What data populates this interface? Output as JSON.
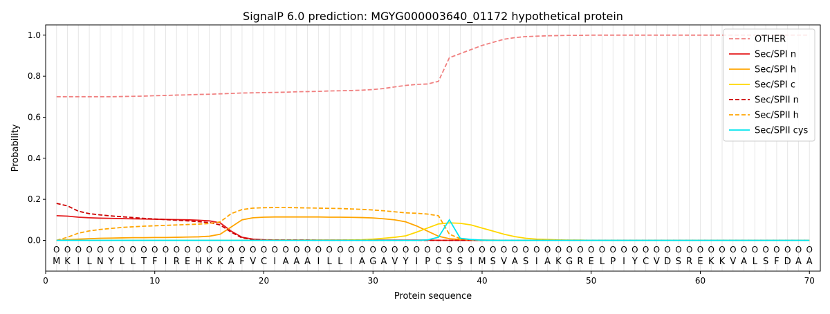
{
  "chart_data": {
    "type": "line",
    "title": "SignalP 6.0 prediction: MGYG000003640_01172 hypothetical protein",
    "xlabel": "Protein sequence",
    "ylabel": "Probability",
    "xlim": [
      0,
      71
    ],
    "ylim": [
      -0.15,
      1.05
    ],
    "x_ticks": [
      0,
      10,
      20,
      30,
      40,
      50,
      60,
      70
    ],
    "y_ticks": [
      0.0,
      0.2,
      0.4,
      0.6,
      0.8,
      1.0
    ],
    "y_tick_labels": [
      "0.0",
      "0.2",
      "0.4",
      "0.6",
      "0.8",
      "1.0"
    ],
    "grid": "vertical lines at each residue",
    "legend_position": "top-right",
    "sequence": [
      "M",
      "K",
      "I",
      "L",
      "N",
      "Y",
      "L",
      "L",
      "T",
      "F",
      "I",
      "R",
      "E",
      "H",
      "K",
      "K",
      "A",
      "F",
      "V",
      "C",
      "I",
      "A",
      "A",
      "A",
      "I",
      "L",
      "L",
      "I",
      "A",
      "G",
      "A",
      "V",
      "Y",
      "I",
      "P",
      "C",
      "S",
      "S",
      "I",
      "M",
      "S",
      "V",
      "A",
      "S",
      "I",
      "A",
      "K",
      "G",
      "R",
      "E",
      "L",
      "P",
      "I",
      "Y",
      "C",
      "V",
      "D",
      "S",
      "R",
      "E",
      "K",
      "K",
      "V",
      "A",
      "L",
      "S",
      "F",
      "D",
      "A",
      "A"
    ],
    "residue_marker": "O",
    "series": [
      {
        "name": "OTHER",
        "color": "#f08080",
        "dash": "dashed",
        "values": [
          0.7,
          0.7,
          0.7,
          0.7,
          0.7,
          0.7,
          0.701,
          0.702,
          0.703,
          0.705,
          0.706,
          0.708,
          0.709,
          0.711,
          0.712,
          0.714,
          0.716,
          0.718,
          0.719,
          0.72,
          0.721,
          0.722,
          0.724,
          0.725,
          0.726,
          0.728,
          0.729,
          0.73,
          0.732,
          0.735,
          0.74,
          0.748,
          0.755,
          0.76,
          0.762,
          0.775,
          0.89,
          0.91,
          0.93,
          0.95,
          0.965,
          0.98,
          0.988,
          0.993,
          0.995,
          0.997,
          0.998,
          0.999,
          0.999,
          1.0,
          1.0,
          1.0,
          1.0,
          1.0,
          1.0,
          1.0,
          1.0,
          1.0,
          1.0,
          1.0,
          1.0,
          1.0,
          1.0,
          1.0,
          1.0,
          1.0,
          1.0,
          1.0,
          1.0,
          1.0
        ]
      },
      {
        "name": "Sec/SPI n",
        "color": "#e41a1c",
        "dash": "solid",
        "values": [
          0.12,
          0.118,
          0.113,
          0.11,
          0.108,
          0.107,
          0.106,
          0.105,
          0.104,
          0.103,
          0.102,
          0.101,
          0.1,
          0.098,
          0.095,
          0.085,
          0.045,
          0.015,
          0.006,
          0.003,
          0.002,
          0.001,
          0.001,
          0.001,
          0.001,
          0.001,
          0.001,
          0.001,
          0.001,
          0.001,
          0.001,
          0.001,
          0.001,
          0.001,
          0.001,
          0.0,
          0.0,
          0.0,
          0.0,
          0.0,
          0.0,
          0.0,
          0.0,
          0.0,
          0.0,
          0.0,
          0.0,
          0.0,
          0.0,
          0.0,
          0.0,
          0.0,
          0.0,
          0.0,
          0.0,
          0.0,
          0.0,
          0.0,
          0.0,
          0.0,
          0.0,
          0.0,
          0.0,
          0.0,
          0.0,
          0.0,
          0.0,
          0.0,
          0.0,
          0.0
        ]
      },
      {
        "name": "Sec/SPI h",
        "color": "#ffa500",
        "dash": "solid",
        "values": [
          0.0,
          0.003,
          0.006,
          0.008,
          0.01,
          0.011,
          0.012,
          0.013,
          0.013,
          0.014,
          0.014,
          0.015,
          0.016,
          0.017,
          0.02,
          0.03,
          0.065,
          0.1,
          0.11,
          0.113,
          0.114,
          0.114,
          0.114,
          0.114,
          0.114,
          0.113,
          0.113,
          0.112,
          0.111,
          0.109,
          0.105,
          0.1,
          0.09,
          0.07,
          0.045,
          0.02,
          0.008,
          0.004,
          0.002,
          0.001,
          0.001,
          0.0,
          0.0,
          0.0,
          0.0,
          0.0,
          0.0,
          0.0,
          0.0,
          0.0,
          0.0,
          0.0,
          0.0,
          0.0,
          0.0,
          0.0,
          0.0,
          0.0,
          0.0,
          0.0,
          0.0,
          0.0,
          0.0,
          0.0,
          0.0,
          0.0,
          0.0,
          0.0,
          0.0,
          0.0
        ]
      },
      {
        "name": "Sec/SPI c",
        "color": "#ffd700",
        "dash": "solid",
        "values": [
          0.0,
          0.0,
          0.0,
          0.0,
          0.0,
          0.0,
          0.0,
          0.0,
          0.0,
          0.0,
          0.0,
          0.0,
          0.0,
          0.0,
          0.0,
          0.0,
          0.0,
          0.0,
          0.0,
          0.001,
          0.001,
          0.001,
          0.001,
          0.001,
          0.001,
          0.001,
          0.001,
          0.002,
          0.003,
          0.006,
          0.01,
          0.015,
          0.022,
          0.04,
          0.06,
          0.08,
          0.085,
          0.083,
          0.075,
          0.06,
          0.045,
          0.03,
          0.018,
          0.01,
          0.006,
          0.004,
          0.002,
          0.001,
          0.001,
          0.0,
          0.0,
          0.0,
          0.0,
          0.0,
          0.0,
          0.0,
          0.0,
          0.0,
          0.0,
          0.0,
          0.0,
          0.0,
          0.0,
          0.0,
          0.0,
          0.0,
          0.0,
          0.0,
          0.0,
          0.0
        ]
      },
      {
        "name": "Sec/SPII n",
        "color": "#cc0000",
        "dash": "dashed",
        "values": [
          0.18,
          0.168,
          0.142,
          0.13,
          0.124,
          0.119,
          0.115,
          0.111,
          0.107,
          0.104,
          0.101,
          0.098,
          0.095,
          0.091,
          0.087,
          0.075,
          0.04,
          0.012,
          0.004,
          0.002,
          0.001,
          0.001,
          0.001,
          0.001,
          0.0,
          0.0,
          0.0,
          0.0,
          0.0,
          0.0,
          0.0,
          0.0,
          0.0,
          0.0,
          0.0,
          0.0,
          0.0,
          0.0,
          0.0,
          0.0,
          0.0,
          0.0,
          0.0,
          0.0,
          0.0,
          0.0,
          0.0,
          0.0,
          0.0,
          0.0,
          0.0,
          0.0,
          0.0,
          0.0,
          0.0,
          0.0,
          0.0,
          0.0,
          0.0,
          0.0,
          0.0,
          0.0,
          0.0,
          0.0,
          0.0,
          0.0,
          0.0,
          0.0,
          0.0,
          0.0
        ]
      },
      {
        "name": "Sec/SPII h",
        "color": "#ffa500",
        "dash": "dashed",
        "values": [
          0.0,
          0.015,
          0.035,
          0.046,
          0.053,
          0.058,
          0.063,
          0.066,
          0.069,
          0.071,
          0.073,
          0.075,
          0.077,
          0.079,
          0.082,
          0.09,
          0.13,
          0.15,
          0.157,
          0.159,
          0.16,
          0.16,
          0.159,
          0.158,
          0.157,
          0.156,
          0.155,
          0.153,
          0.151,
          0.148,
          0.144,
          0.139,
          0.134,
          0.132,
          0.128,
          0.12,
          0.03,
          0.008,
          0.003,
          0.001,
          0.0,
          0.0,
          0.0,
          0.0,
          0.0,
          0.0,
          0.0,
          0.0,
          0.0,
          0.0,
          0.0,
          0.0,
          0.0,
          0.0,
          0.0,
          0.0,
          0.0,
          0.0,
          0.0,
          0.0,
          0.0,
          0.0,
          0.0,
          0.0,
          0.0,
          0.0,
          0.0,
          0.0,
          0.0,
          0.0
        ]
      },
      {
        "name": "Sec/SPII cys",
        "color": "#00e5ee",
        "dash": "solid",
        "values": [
          0.0,
          0.0,
          0.0,
          0.0,
          0.0,
          0.0,
          0.0,
          0.0,
          0.0,
          0.0,
          0.0,
          0.0,
          0.0,
          0.0,
          0.0,
          0.0,
          0.0,
          0.0,
          0.0,
          0.0,
          0.0,
          0.0,
          0.0,
          0.0,
          0.0,
          0.0,
          0.0,
          0.0,
          0.0,
          0.0,
          0.0,
          0.0,
          0.0,
          0.0,
          0.002,
          0.015,
          0.1,
          0.01,
          0.004,
          0.001,
          0.0,
          0.0,
          0.0,
          0.0,
          0.0,
          0.0,
          0.0,
          0.0,
          0.0,
          0.0,
          0.0,
          0.0,
          0.0,
          0.0,
          0.0,
          0.0,
          0.0,
          0.0,
          0.0,
          0.0,
          0.0,
          0.0,
          0.0,
          0.0,
          0.0,
          0.0,
          0.0,
          0.0,
          0.0,
          0.0
        ]
      }
    ]
  }
}
